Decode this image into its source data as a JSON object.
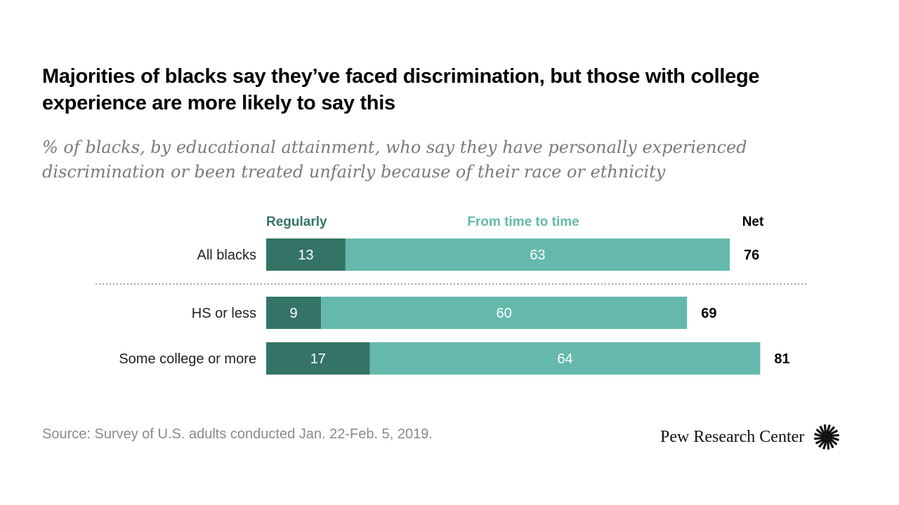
{
  "title": "Majorities of blacks say they’ve faced discrimination, but those with college experience are more likely to say this",
  "subtitle": "% of blacks, by educational attainment, who say they have personally experienced discrimination or been treated unfairly because of their race or ethnicity",
  "source": "Source: Survey of U.S. adults conducted Jan. 22-Feb. 5, 2019.",
  "logo_text": "Pew Research Center",
  "colors": {
    "regularly": "#347466",
    "time_to_time": "#64b9ac",
    "net": "#000000"
  },
  "chart_data": {
    "type": "bar",
    "orientation": "horizontal",
    "stacked": true,
    "categories": [
      "All blacks",
      "HS or less",
      "Some college or more"
    ],
    "series": [
      {
        "name": "Regularly",
        "values": [
          13,
          9,
          17
        ]
      },
      {
        "name": "From time to time",
        "values": [
          63,
          60,
          64
        ]
      }
    ],
    "net": {
      "label": "Net",
      "values": [
        76,
        69,
        81
      ]
    },
    "divider_after_index": 0,
    "title": "Majorities of blacks say they’ve faced discrimination, but those with college experience are more likely to say this",
    "xlabel": "",
    "ylabel": ""
  }
}
